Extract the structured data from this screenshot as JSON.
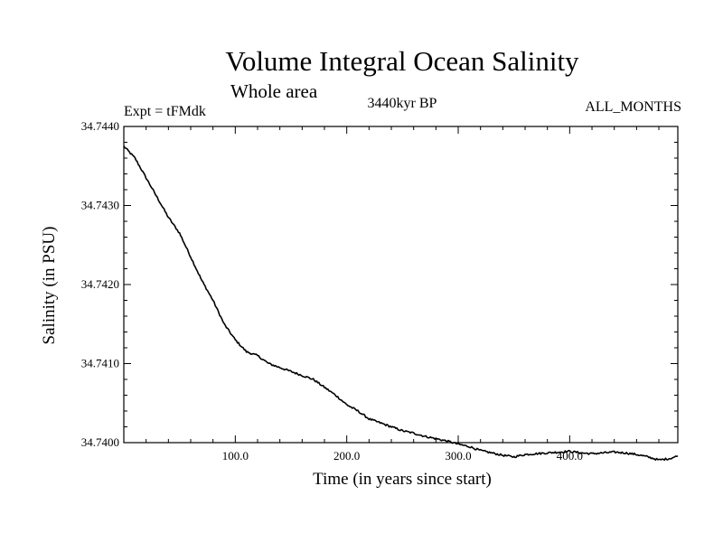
{
  "chart_data": {
    "type": "line",
    "title": "Volume Integral Ocean Salinity",
    "subtitle": "Whole area",
    "left_label": "Expt = tFMdk",
    "center_label": "3440kyr BP",
    "right_label": "ALL_MONTHS",
    "xlabel": "Time (in years since start)",
    "ylabel": "Salinity (in PSU)",
    "xlim": [
      0,
      497
    ],
    "ylim": [
      34.74,
      34.744
    ],
    "x_ticks": [
      100,
      200,
      300,
      400
    ],
    "x_tick_labels": [
      "100.0",
      "200.0",
      "300.0",
      "400.0"
    ],
    "y_ticks": [
      34.74,
      34.741,
      34.742,
      34.743,
      34.744
    ],
    "y_tick_labels": [
      "34.7400",
      "34.7410",
      "34.7420",
      "34.7430",
      "34.7440"
    ],
    "grid": false,
    "series": [
      {
        "name": "Salinity",
        "x": [
          0,
          10,
          20,
          30,
          40,
          50,
          60,
          70,
          80,
          90,
          100,
          110,
          120,
          130,
          140,
          150,
          160,
          170,
          180,
          190,
          200,
          210,
          220,
          230,
          240,
          250,
          260,
          270,
          280,
          290,
          300,
          310,
          320,
          330,
          340,
          350,
          360,
          370,
          380,
          390,
          400,
          410,
          420,
          430,
          440,
          450,
          460,
          470,
          480,
          490,
          497
        ],
        "values": [
          34.74375,
          34.7436,
          34.74335,
          34.7431,
          34.74285,
          34.74265,
          34.74235,
          34.74205,
          34.7418,
          34.7415,
          34.7413,
          34.74115,
          34.7411,
          34.741,
          34.74095,
          34.7409,
          34.74085,
          34.7408,
          34.7407,
          34.7406,
          34.74048,
          34.7404,
          34.7403,
          34.74025,
          34.7402,
          34.74015,
          34.74012,
          34.74008,
          34.74005,
          34.74002,
          34.73998,
          34.73995,
          34.7399,
          34.73987,
          34.73984,
          34.73982,
          34.73985,
          34.73986,
          34.73987,
          34.73988,
          34.73989,
          34.73987,
          34.73986,
          34.73987,
          34.73988,
          34.73987,
          34.73985,
          34.73982,
          34.73978,
          34.7398,
          34.73983
        ]
      }
    ]
  }
}
